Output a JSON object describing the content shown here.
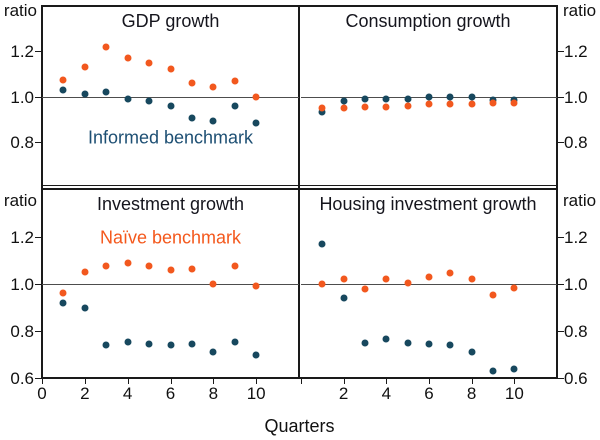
{
  "figure": {
    "x_axis_title": "Quarters",
    "y_axis_unit": "ratio",
    "colors": {
      "informed": "#17485E",
      "naive": "#F2581E",
      "informed_text": "#1D4F73",
      "naive_text": "#F4581C",
      "axis": "#1A1A1A",
      "unity_line": "#4D4D4D"
    }
  },
  "chart_data": {
    "type": "scatter",
    "xlabel": "Quarters",
    "ylabel": "ratio",
    "x_range": [
      0,
      12
    ],
    "y_range": [
      0.6,
      1.4
    ],
    "reference_line": 1.0,
    "x": [
      1,
      2,
      3,
      4,
      5,
      6,
      7,
      8,
      9,
      10
    ],
    "series_names": [
      "Informed benchmark",
      "Naïve benchmark"
    ],
    "y_ticks": {
      "top_row": [
        0.8,
        1.0,
        1.2
      ],
      "bottom_row": [
        0.6,
        0.8,
        1.0,
        1.2
      ]
    },
    "x_ticks": {
      "left_panel_labeled": [
        0,
        2,
        4,
        6,
        8,
        10
      ],
      "right_panel_labeled": [
        2,
        4,
        6,
        8,
        10
      ],
      "right_panel_unlabeled": [
        0
      ]
    },
    "panels": [
      {
        "title": "GDP growth",
        "position": "top-left",
        "informed": [
          1.03,
          1.01,
          1.02,
          0.99,
          0.98,
          0.96,
          0.905,
          0.89,
          0.96,
          0.885
        ],
        "naive": [
          1.075,
          1.13,
          1.22,
          1.17,
          1.15,
          1.12,
          1.06,
          1.04,
          1.07,
          1.0
        ],
        "annotation": {
          "text": "Informed benchmark",
          "series": "informed"
        }
      },
      {
        "title": "Consumption growth",
        "position": "top-right",
        "informed": [
          0.93,
          0.98,
          0.99,
          0.99,
          0.99,
          1.0,
          1.0,
          1.0,
          0.985,
          0.985
        ],
        "naive": [
          0.95,
          0.95,
          0.955,
          0.955,
          0.96,
          0.965,
          0.965,
          0.965,
          0.97,
          0.97
        ]
      },
      {
        "title": "Investment growth",
        "position": "bottom-left",
        "informed": [
          0.92,
          0.9,
          0.74,
          0.755,
          0.745,
          0.74,
          0.745,
          0.71,
          0.755,
          0.7
        ],
        "naive": [
          0.96,
          1.05,
          1.075,
          1.09,
          1.075,
          1.06,
          1.065,
          1.0,
          1.075,
          0.99
        ],
        "annotation": {
          "text": "Naïve benchmark",
          "series": "naive"
        }
      },
      {
        "title": "Housing investment growth",
        "position": "bottom-right",
        "informed": [
          1.17,
          0.94,
          0.75,
          0.765,
          0.75,
          0.745,
          0.74,
          0.71,
          0.63,
          0.64
        ],
        "naive": [
          1.0,
          1.02,
          0.98,
          1.02,
          1.005,
          1.03,
          1.045,
          1.02,
          0.955,
          0.985
        ]
      }
    ]
  }
}
